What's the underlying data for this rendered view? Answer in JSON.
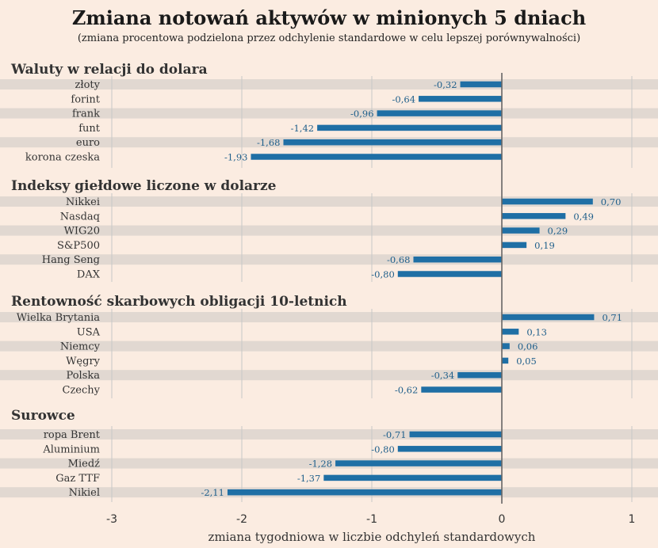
{
  "chart_data": {
    "type": "bar",
    "orientation": "horizontal",
    "title": "Zmiana notowań aktywów w minionych 5 dniach",
    "subtitle": "(zmiana procentowa podzielona przez odchylenie standardowe w celu lepszej porównywalności)",
    "xlabel": "zmiana tygodniowa w liczbie odchyleń standardowych",
    "xlim": [
      -3,
      1
    ],
    "xticks": [
      "-3",
      "-2",
      "-1",
      "0",
      "1"
    ],
    "grid": true,
    "bar_color": "#1f6fa5",
    "groups": [
      {
        "name": "Waluty w relacji do dolara",
        "categories": [
          "złoty",
          "forint",
          "frank",
          "funt",
          "euro",
          "korona czeska"
        ],
        "values": [
          -0.32,
          -0.64,
          -0.96,
          -1.42,
          -1.68,
          -1.93
        ],
        "labels": [
          "-0,32",
          "-0,64",
          "-0,96",
          "-1,42",
          "-1,68",
          "-1,93"
        ]
      },
      {
        "name": "Indeksy giełdowe liczone w dolarze",
        "categories": [
          "Nikkei",
          "Nasdaq",
          "WIG20",
          "S&P500",
          "Hang Seng",
          "DAX"
        ],
        "values": [
          0.7,
          0.49,
          0.29,
          0.19,
          -0.68,
          -0.8
        ],
        "labels": [
          "0,70",
          "0,49",
          "0,29",
          "0,19",
          "-0,68",
          "-0,80"
        ]
      },
      {
        "name": "Rentowność skarbowych obligacji 10-letnich",
        "categories": [
          "Wielka Brytania",
          "USA",
          "Niemcy",
          "Węgry",
          "Polska",
          "Czechy"
        ],
        "values": [
          0.71,
          0.13,
          0.06,
          0.05,
          -0.34,
          -0.62
        ],
        "labels": [
          "0,71",
          "0,13",
          "0,06",
          "0,05",
          "-0,34",
          "-0,62"
        ]
      },
      {
        "name": "Surowce",
        "categories": [
          "ropa Brent",
          "Aluminium",
          "Miedź",
          "Gaz TTF",
          "Nikiel"
        ],
        "values": [
          -0.71,
          -0.8,
          -1.28,
          -1.37,
          -2.11
        ],
        "labels": [
          "-0,71",
          "-0,80",
          "-1,28",
          "-1,37",
          "-2,11"
        ]
      }
    ]
  }
}
